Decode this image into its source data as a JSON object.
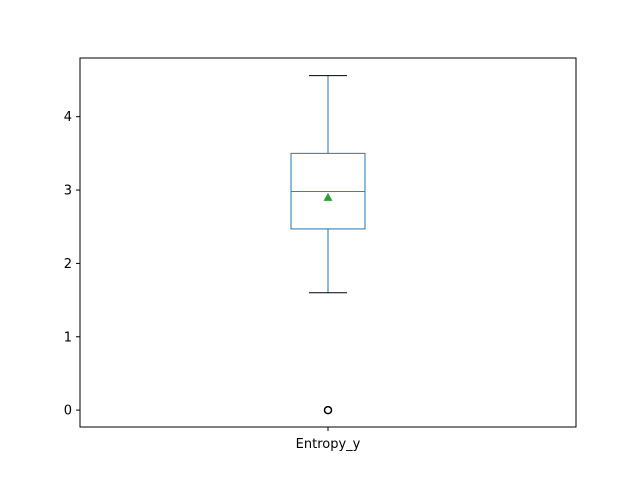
{
  "chart_data": {
    "type": "box",
    "categories": [
      "Entropy_y"
    ],
    "ylim": [
      -0.23,
      4.8
    ],
    "yticks": [
      0,
      1,
      2,
      3,
      4
    ],
    "ytick_labels": [
      "0",
      "1",
      "2",
      "3",
      "4"
    ],
    "grid": false,
    "boxes": [
      {
        "name": "Entropy_y",
        "whisker_low": 1.6,
        "q1": 2.47,
        "median": 2.98,
        "q3": 3.5,
        "whisker_high": 4.56,
        "mean": 2.9,
        "outliers": [
          0.0
        ]
      }
    ],
    "colors": {
      "box": "#1f77b4",
      "median": "#2ca02c",
      "mean": "#2ca02c",
      "whisker_cap": "#000000",
      "outlier": "#000000"
    }
  }
}
